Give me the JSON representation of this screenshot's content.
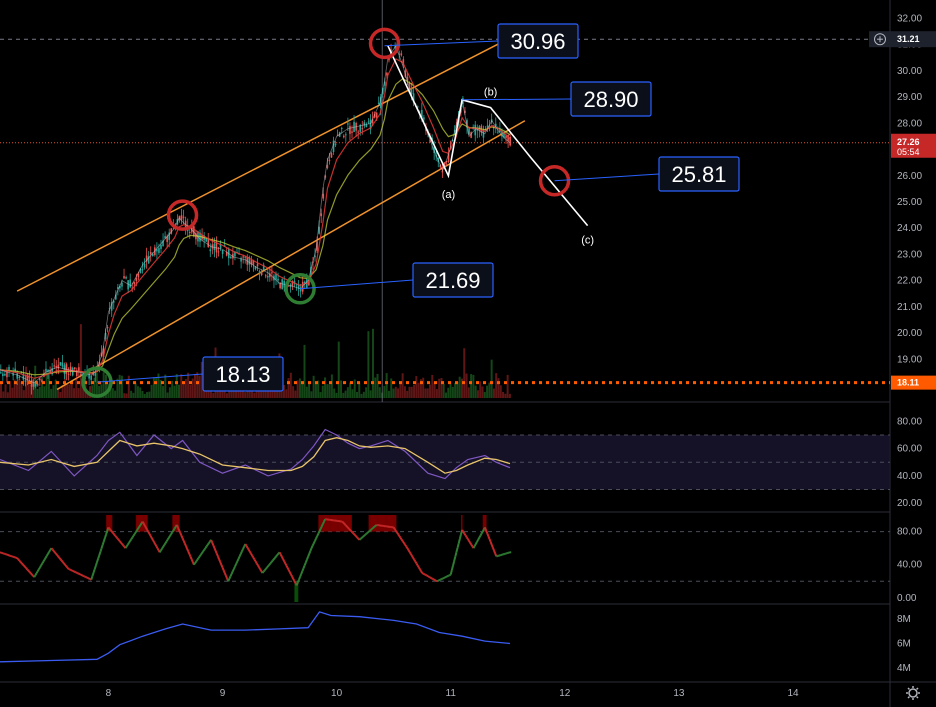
{
  "colors": {
    "background": "#000000",
    "axis_text": "#b2b5be",
    "channel": "#f0922b",
    "callout_border": "#2962ff",
    "callout_bg": "#0b0f1a",
    "leader": "#2962ff",
    "circle_red": "#c62828",
    "circle_green": "#2e7d32",
    "price_line": "#e0522e",
    "support_line": "#ff5a00",
    "rsi": "#7e57c2",
    "rsi_signal": "#e8c46a",
    "rsi_band": "#1a1530",
    "stoch_up": "#2e7d32",
    "stoch_down": "#c62828",
    "stoch_overbought": "#8b0000",
    "stoch_oversold": "#0b5a0b",
    "volume_line": "#3a5cf2",
    "ema_fast": "#e53935",
    "ema_slow": "#cddc39"
  },
  "icons": {
    "add_alert": "plus-circle-icon",
    "settings": "gear-icon"
  },
  "axes": {
    "x_labels": [
      "8",
      "9",
      "10",
      "11",
      "12",
      "13",
      "14"
    ],
    "price_ticks": [
      "32.00",
      "31.00",
      "30.00",
      "29.00",
      "28.00",
      "27.00",
      "26.00",
      "25.00",
      "24.00",
      "23.00",
      "22.00",
      "21.00",
      "20.00",
      "19.00",
      "18.00"
    ],
    "rsi_ticks": [
      "80.00",
      "60.00",
      "40.00",
      "20.00"
    ],
    "stoch_ticks": [
      "80.00",
      "40.00",
      "0.00"
    ],
    "volume_ticks": [
      "8M",
      "6M",
      "4M"
    ]
  },
  "price_tags": {
    "crosshair": "31.21",
    "last_price": "27.26",
    "countdown": "05:54",
    "support": "18.11"
  },
  "callouts": [
    {
      "label": "30.96"
    },
    {
      "label": "28.90"
    },
    {
      "label": "25.81"
    },
    {
      "label": "21.69"
    },
    {
      "label": "18.13"
    }
  ],
  "wave_labels": [
    "(a)",
    "(b)",
    "(c)"
  ],
  "chart_data": [
    {
      "type": "line",
      "name": "price",
      "x_range": [
        7.05,
        14.85
      ],
      "ylim": [
        17.6,
        32.4
      ],
      "price_path": {
        "x": [
          7.05,
          7.2,
          7.35,
          7.45,
          7.55,
          7.65,
          7.75,
          7.85,
          7.9,
          7.95,
          8.0,
          8.05,
          8.12,
          8.2,
          8.3,
          8.4,
          8.5,
          8.58,
          8.62,
          8.66,
          8.72,
          8.8,
          8.9,
          9.0,
          9.1,
          9.2,
          9.3,
          9.4,
          9.5,
          9.6,
          9.68,
          9.75,
          9.82,
          9.88,
          9.92,
          10.0,
          10.1,
          10.2,
          10.3,
          10.38,
          10.42,
          10.45,
          10.52,
          10.58,
          10.66,
          10.75,
          10.85,
          10.93,
          10.98,
          11.04,
          11.1,
          11.16,
          11.22,
          11.3,
          11.36,
          11.42,
          11.48,
          11.52
        ],
        "y": [
          18.6,
          18.4,
          18.1,
          18.5,
          18.7,
          18.6,
          18.5,
          18.4,
          18.6,
          19.3,
          20.8,
          21.3,
          22.0,
          21.8,
          22.6,
          23.1,
          23.6,
          24.0,
          24.4,
          24.2,
          24.0,
          23.6,
          23.3,
          23.2,
          22.9,
          22.8,
          22.5,
          22.3,
          21.9,
          21.8,
          21.7,
          22.0,
          23.2,
          25.5,
          26.6,
          27.5,
          27.8,
          27.9,
          28.0,
          28.8,
          29.6,
          30.5,
          30.96,
          30.2,
          29.0,
          28.2,
          27.0,
          26.2,
          26.8,
          27.8,
          28.9,
          27.5,
          27.8,
          27.6,
          28.1,
          27.7,
          27.4,
          27.26
        ]
      },
      "channel_upper": {
        "x": [
          7.2,
          11.45
        ],
        "y": [
          21.6,
          31.1
        ]
      },
      "channel_lower": {
        "x": [
          7.55,
          11.65
        ],
        "y": [
          17.85,
          28.1
        ]
      },
      "abc_wave": {
        "x": [
          10.45,
          10.98,
          11.1,
          11.35,
          11.7,
          12.2
        ],
        "y": [
          30.96,
          26.0,
          28.9,
          28.6,
          26.7,
          24.1
        ]
      },
      "markers": [
        {
          "x": 10.42,
          "y": 31.05,
          "kind": "peak"
        },
        {
          "x": 8.65,
          "y": 24.5,
          "kind": "peak"
        },
        {
          "x": 11.91,
          "y": 25.81,
          "kind": "target"
        },
        {
          "x": 9.68,
          "y": 21.69,
          "kind": "support"
        },
        {
          "x": 7.9,
          "y": 18.13,
          "kind": "support"
        }
      ],
      "current_price": 27.26,
      "support_level": 18.11,
      "crosshair_price": 31.21,
      "crosshair_x": 10.4,
      "y_ticks": [
        32,
        31,
        30,
        29,
        28,
        27,
        26,
        25,
        24,
        23,
        22,
        21,
        20,
        19,
        18
      ]
    },
    {
      "type": "line",
      "name": "rsi",
      "ylim": [
        15,
        92
      ],
      "band": [
        30,
        70
      ],
      "x": [
        7.05,
        7.3,
        7.5,
        7.7,
        7.9,
        8.0,
        8.1,
        8.25,
        8.4,
        8.55,
        8.65,
        8.8,
        9.0,
        9.2,
        9.4,
        9.6,
        9.7,
        9.8,
        9.9,
        10.0,
        10.1,
        10.2,
        10.3,
        10.45,
        10.6,
        10.8,
        10.95,
        11.05,
        11.15,
        11.3,
        11.4,
        11.52
      ],
      "values": [
        52,
        44,
        58,
        40,
        55,
        66,
        72,
        55,
        70,
        60,
        66,
        50,
        42,
        48,
        40,
        45,
        52,
        62,
        74,
        70,
        64,
        60,
        62,
        66,
        58,
        42,
        38,
        46,
        52,
        55,
        50,
        46
      ],
      "signal": [
        50,
        48,
        52,
        47,
        50,
        58,
        66,
        62,
        64,
        62,
        60,
        56,
        48,
        46,
        44,
        44,
        47,
        54,
        66,
        68,
        66,
        62,
        61,
        62,
        60,
        50,
        42,
        44,
        48,
        53,
        52,
        49
      ]
    },
    {
      "type": "line",
      "name": "stochastic",
      "ylim": [
        -5,
        100
      ],
      "levels": [
        20,
        80
      ],
      "x": [
        7.05,
        7.2,
        7.35,
        7.5,
        7.65,
        7.85,
        8.0,
        8.15,
        8.3,
        8.45,
        8.6,
        8.75,
        8.9,
        9.05,
        9.2,
        9.35,
        9.5,
        9.65,
        9.78,
        9.9,
        10.05,
        10.2,
        10.35,
        10.5,
        10.62,
        10.75,
        10.88,
        11.0,
        11.1,
        11.2,
        11.3,
        11.4,
        11.52
      ],
      "values": [
        55,
        48,
        25,
        60,
        35,
        22,
        85,
        60,
        92,
        55,
        88,
        40,
        70,
        20,
        65,
        30,
        55,
        15,
        60,
        95,
        92,
        70,
        88,
        85,
        60,
        30,
        20,
        28,
        82,
        60,
        85,
        50,
        55
      ]
    },
    {
      "type": "line",
      "name": "volume_trend",
      "ylim": [
        3,
        9
      ],
      "y_ticks": [
        8,
        6,
        4
      ],
      "x": [
        7.05,
        7.5,
        7.9,
        8.0,
        8.1,
        8.3,
        8.5,
        8.65,
        8.9,
        9.2,
        9.5,
        9.75,
        9.85,
        9.95,
        10.2,
        10.5,
        10.7,
        10.9,
        11.1,
        11.3,
        11.52
      ],
      "values": [
        4.5,
        4.6,
        4.7,
        5.2,
        5.9,
        6.6,
        7.2,
        7.6,
        7.1,
        7.1,
        7.2,
        7.3,
        8.6,
        8.3,
        8.2,
        7.9,
        7.6,
        6.9,
        6.6,
        6.2,
        6.0
      ]
    }
  ]
}
